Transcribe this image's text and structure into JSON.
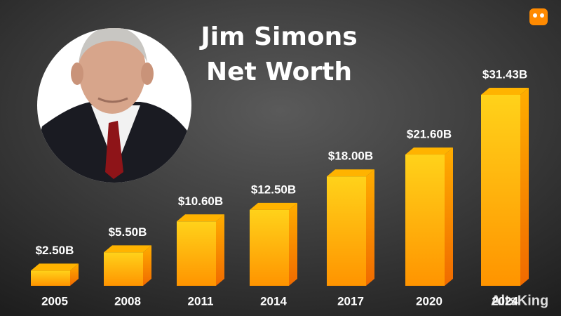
{
  "chart_data": {
    "type": "bar3d",
    "title": "Jim Simons Net Worth",
    "categories": [
      "2005",
      "2008",
      "2011",
      "2014",
      "2017",
      "2020",
      "2024"
    ],
    "values": [
      2.5,
      5.5,
      10.6,
      12.5,
      18.0,
      21.6,
      31.43
    ],
    "value_labels": [
      "$2.50B",
      "$5.50B",
      "$10.60B",
      "$12.50B",
      "$18.00B",
      "$21.60B",
      "$31.43B"
    ],
    "color": "#ffb300",
    "watermark": "AltsKing"
  }
}
